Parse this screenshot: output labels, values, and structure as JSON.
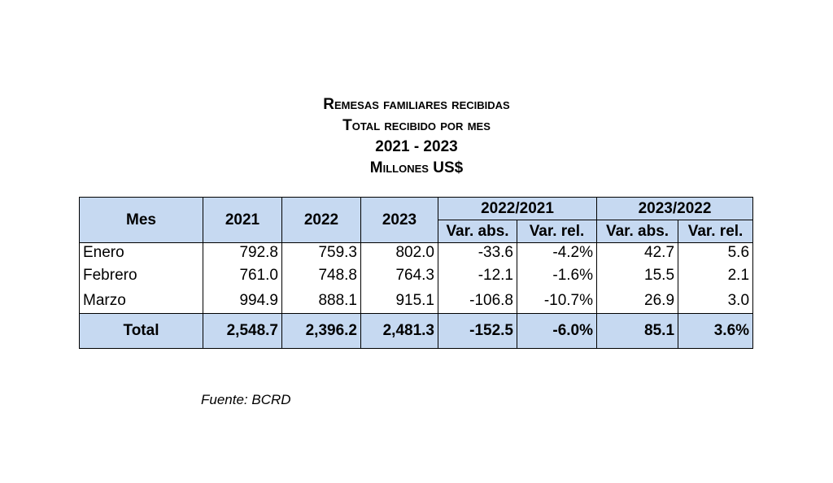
{
  "title": {
    "line1": "Remesas familiares recibidas",
    "line2": "Total recibido por mes",
    "line3": "2021 - 2023",
    "line4": "Millones US$"
  },
  "table": {
    "headers": {
      "mes": "Mes",
      "y2021": "2021",
      "y2022": "2022",
      "y2023": "2023",
      "group1": "2022/2021",
      "group2": "2023/2022",
      "var_abs": "Var. abs.",
      "var_rel": "Var. rel."
    },
    "rows": [
      {
        "mes": "Enero",
        "y2021": "792.8",
        "y2022": "759.3",
        "y2023": "802.0",
        "abs1": "-33.6",
        "rel1": "-4.2%",
        "abs2": "42.7",
        "rel2": "5.6"
      },
      {
        "mes": "Febrero",
        "y2021": "761.0",
        "y2022": "748.8",
        "y2023": "764.3",
        "abs1": "-12.1",
        "rel1": "-1.6%",
        "abs2": "15.5",
        "rel2": "2.1"
      },
      {
        "mes": "Marzo",
        "y2021": "994.9",
        "y2022": "888.1",
        "y2023": "915.1",
        "abs1": "-106.8",
        "rel1": "-10.7%",
        "abs2": "26.9",
        "rel2": "3.0"
      }
    ],
    "total": {
      "mes": "Total",
      "y2021": "2,548.7",
      "y2022": "2,396.2",
      "y2023": "2,481.3",
      "abs1": "-152.5",
      "rel1": "-6.0%",
      "abs2": "85.1",
      "rel2": "3.6%"
    }
  },
  "source": "Fuente: BCRD",
  "colors": {
    "header_fill": "#c6d9f1",
    "border": "#000000"
  }
}
